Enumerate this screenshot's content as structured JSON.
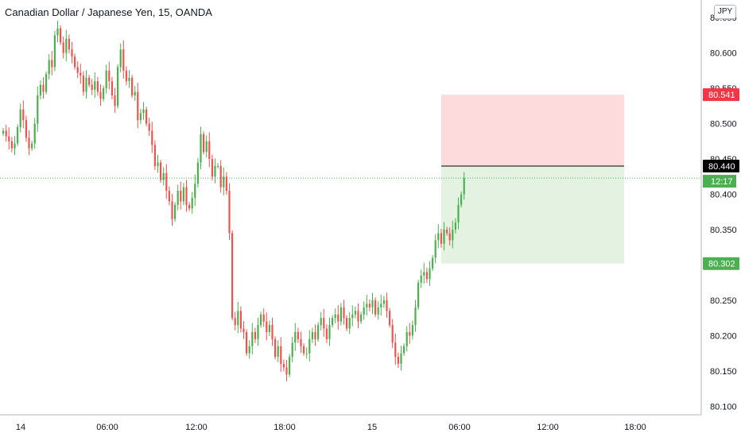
{
  "chart_title": "Canadian Dollar / Japanese Yen, 15, OANDA",
  "currency_button": "JPY",
  "colors": {
    "up": "#4caf50",
    "down": "#ef5350",
    "stop_zone": "#fccfd0",
    "target_zone": "#dff0dc",
    "stop_tag": "#f23645",
    "target_tag": "#4caf50",
    "entry_tag": "#000000",
    "last_price_line": "#4caf50",
    "grid": "#f0f3fa",
    "axis": "#b2b5be"
  },
  "chart_data": {
    "type": "candlestick",
    "symbol": "CADJPY",
    "timeframe": "15",
    "source": "OANDA",
    "x_ticks": [
      "14",
      "06:00",
      "12:00",
      "18:00",
      "15",
      "06:00",
      "12:00",
      "18:00"
    ],
    "y_ticks": [
      "80.650",
      "80.600",
      "80.550",
      "80.500",
      "80.450",
      "80.400",
      "80.350",
      "80.300",
      "80.250",
      "80.200",
      "80.150",
      "80.100"
    ],
    "ylim": [
      80.088,
      80.675
    ],
    "grid": false,
    "position": {
      "stop_loss": "80.541",
      "entry": "80.440",
      "take_profit": "80.302",
      "stop_value": 80.541,
      "entry_value": 80.44,
      "target_value": 80.302
    },
    "last_price": 80.423,
    "countdown": "12:17",
    "candles_close": [
      80.49,
      80.482,
      80.475,
      80.465,
      80.472,
      80.495,
      80.52,
      80.505,
      80.48,
      80.465,
      80.472,
      80.5,
      80.54,
      80.555,
      80.545,
      80.57,
      80.59,
      80.58,
      80.625,
      80.635,
      80.615,
      80.6,
      80.62,
      80.605,
      80.595,
      80.58,
      80.572,
      80.568,
      80.545,
      80.565,
      80.555,
      80.548,
      80.56,
      80.545,
      80.535,
      80.55,
      80.575,
      80.56,
      80.54,
      80.525,
      80.58,
      80.605,
      80.575,
      80.56,
      80.565,
      80.54,
      80.545,
      80.505,
      80.515,
      80.52,
      80.5,
      80.49,
      80.47,
      80.44,
      80.445,
      80.42,
      80.43,
      80.405,
      80.39,
      80.365,
      80.385,
      80.405,
      80.39,
      80.41,
      80.385,
      80.38,
      80.395,
      80.415,
      80.445,
      80.485,
      80.46,
      80.475,
      80.45,
      80.425,
      80.44,
      80.44,
      80.41,
      80.425,
      80.405,
      80.345,
      80.225,
      80.215,
      80.235,
      80.21,
      80.205,
      80.175,
      80.185,
      80.205,
      80.195,
      80.215,
      80.23,
      80.22,
      80.205,
      80.215,
      80.195,
      80.17,
      80.185,
      80.16,
      80.155,
      80.145,
      80.17,
      80.19,
      80.205,
      80.195,
      80.185,
      80.175,
      80.175,
      80.195,
      80.205,
      80.195,
      80.215,
      80.225,
      80.21,
      80.195,
      80.215,
      80.225,
      80.23,
      80.22,
      80.24,
      80.225,
      80.21,
      80.225,
      80.23,
      80.235,
      80.22,
      80.23,
      80.24,
      80.245,
      80.24,
      80.25,
      80.23,
      80.24,
      80.245,
      80.25,
      80.235,
      80.215,
      80.19,
      80.17,
      80.16,
      80.175,
      80.185,
      80.205,
      80.2,
      80.215,
      80.24,
      80.275,
      80.285,
      80.29,
      80.28,
      80.295,
      80.31,
      80.335,
      80.345,
      80.33,
      80.35,
      80.345,
      80.335,
      80.35,
      80.36,
      80.385,
      80.4,
      80.423
    ]
  }
}
